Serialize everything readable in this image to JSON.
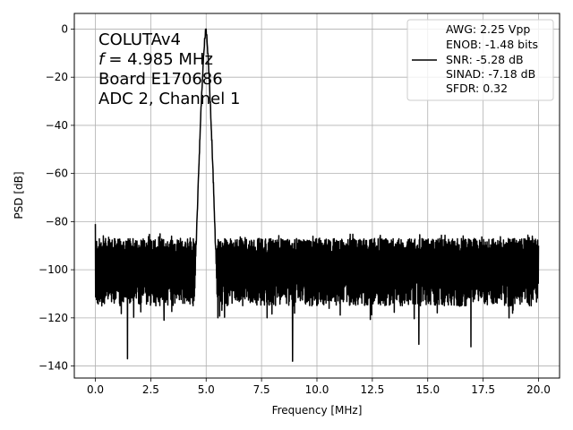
{
  "chart_data": {
    "type": "line",
    "title": "",
    "xlabel": "Frequency [MHz]",
    "ylabel": "PSD [dB]",
    "xlim": [
      -0.95,
      20.95
    ],
    "ylim": [
      -145,
      6.5
    ],
    "xticks": [
      0.0,
      2.5,
      5.0,
      7.5,
      10.0,
      12.5,
      15.0,
      17.5,
      20.0
    ],
    "xtick_labels": [
      "0.0",
      "2.5",
      "5.0",
      "7.5",
      "10.0",
      "12.5",
      "15.0",
      "17.5",
      "20.0"
    ],
    "yticks": [
      0,
      -20,
      -40,
      -60,
      -80,
      -100,
      -120,
      -140
    ],
    "ytick_labels": [
      "0",
      "−20",
      "−40",
      "−60",
      "−80",
      "−100",
      "−120",
      "−140"
    ],
    "grid": true,
    "legend_position": "top-right",
    "series": [
      {
        "color": "#000000",
        "peak": {
          "x": 4.985,
          "y": 0
        },
        "noise_floor_db": -100,
        "spurs": [
          {
            "x": 0.0,
            "y": -81
          },
          {
            "x": 0.15,
            "y": -110
          },
          {
            "x": 1.45,
            "y": -137
          },
          {
            "x": 3.1,
            "y": -121
          },
          {
            "x": 8.9,
            "y": -138
          },
          {
            "x": 14.6,
            "y": -131
          },
          {
            "x": 16.95,
            "y": -132
          },
          {
            "x": 20.0,
            "y": -90
          }
        ]
      }
    ],
    "annotation_lines": [
      "COLUTAv4",
      "= 4.985 MHz",
      "Board E170686",
      "ADC 2, Channel 1"
    ],
    "annotation_f_symbol": "f",
    "legend_lines": [
      "AWG: 2.25 Vpp",
      "ENOB: -1.48 bits",
      "SNR: -5.28 dB",
      "SINAD: -7.18 dB",
      "SFDR: 0.32"
    ]
  }
}
